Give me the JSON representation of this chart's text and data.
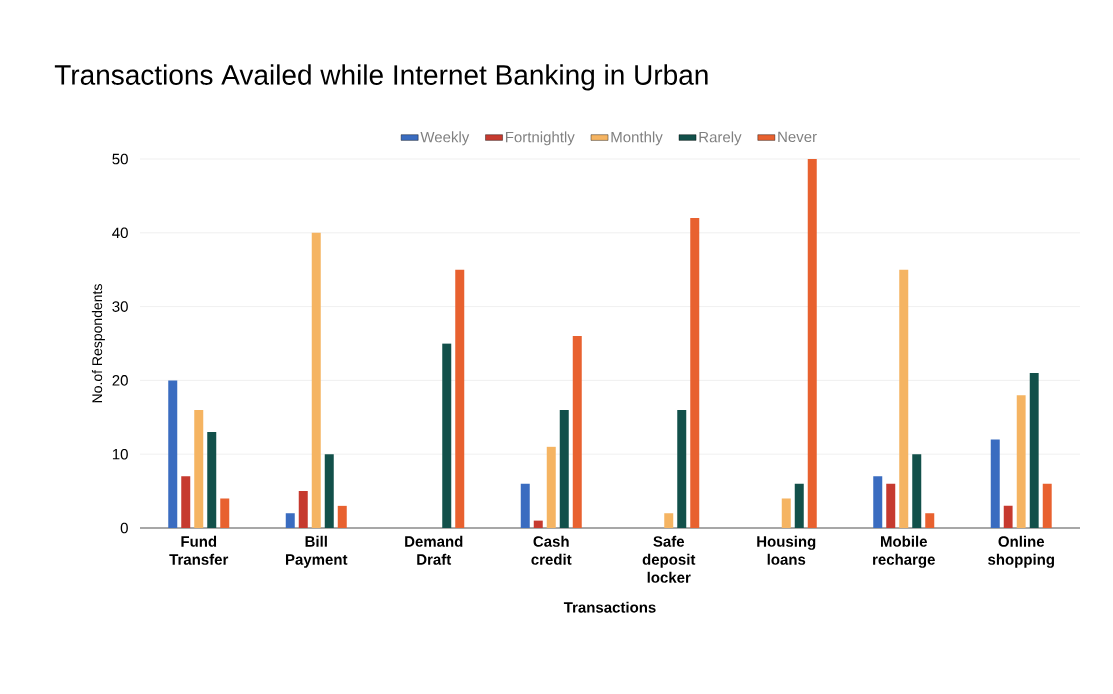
{
  "chart_data": {
    "type": "bar",
    "title": "Transactions Availed while Internet Banking in Urban",
    "xlabel": "Transactions",
    "ylabel": "No.of Respondents",
    "categories": [
      "Fund Transfer",
      "Bill Payment",
      "Demand Draft",
      "Cash credit",
      "Safe deposit locker",
      "Housing loans",
      "Mobile recharge",
      "Online shopping"
    ],
    "series": [
      {
        "name": "Weekly",
        "color": "#3a6cc0",
        "values": [
          20,
          2,
          0,
          6,
          0,
          0,
          7,
          12
        ]
      },
      {
        "name": "Fortnightly",
        "color": "#c63a2f",
        "values": [
          7,
          5,
          0,
          1,
          0,
          0,
          6,
          3
        ]
      },
      {
        "name": "Monthly",
        "color": "#f5b462",
        "values": [
          16,
          40,
          0,
          11,
          2,
          4,
          35,
          18
        ]
      },
      {
        "name": "Rarely",
        "color": "#12504a",
        "values": [
          13,
          10,
          25,
          16,
          16,
          6,
          10,
          21
        ]
      },
      {
        "name": "Never",
        "color": "#e8612f",
        "values": [
          4,
          3,
          35,
          26,
          42,
          50,
          2,
          6
        ]
      }
    ],
    "ylim": [
      0,
      50
    ],
    "yticks": [
      0,
      10,
      20,
      30,
      40,
      50
    ],
    "grid": "y",
    "legend": "top"
  }
}
